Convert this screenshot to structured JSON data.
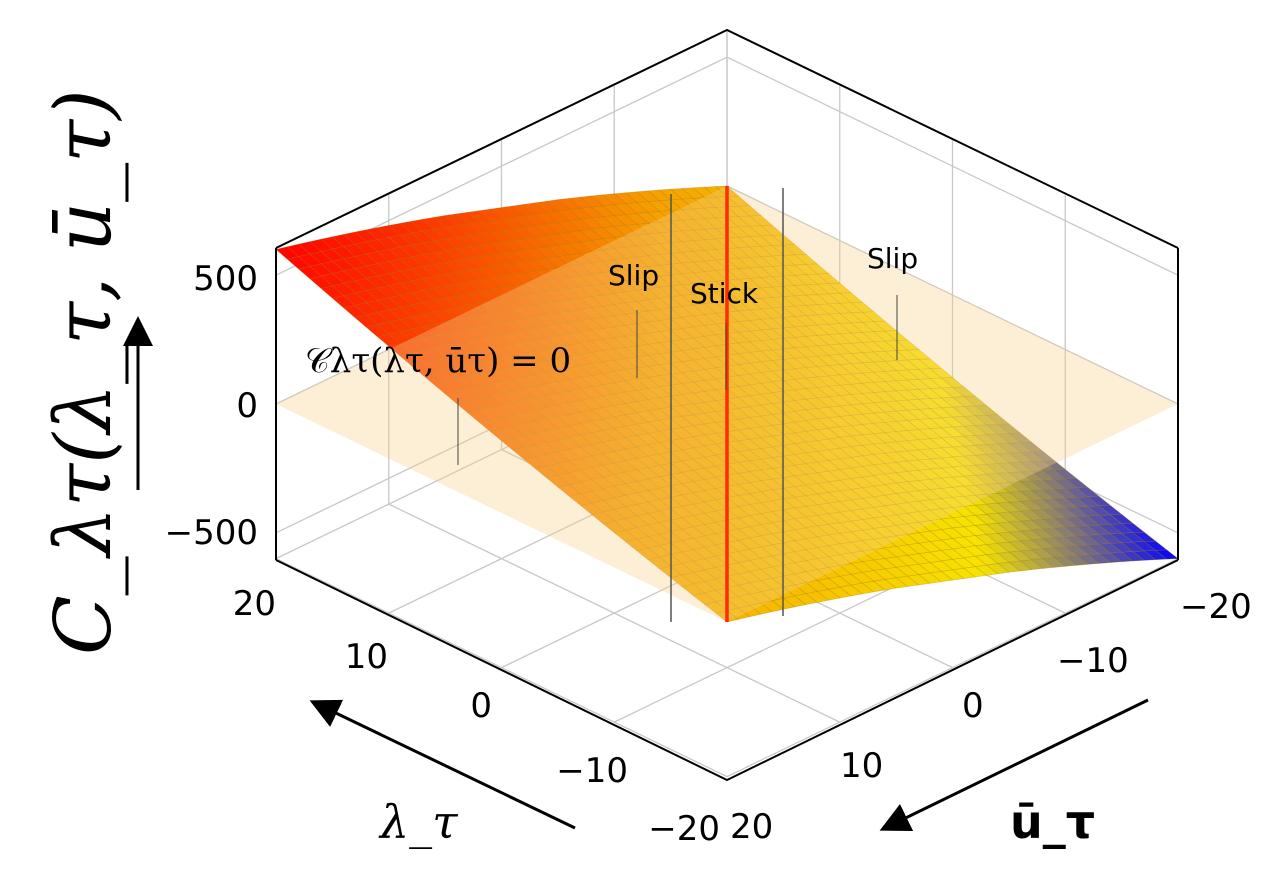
{
  "chart_data": {
    "type": "surface3d",
    "title": "",
    "x_axis": {
      "label": "λ_τ",
      "range": [
        -20,
        20
      ],
      "ticks": [
        20,
        10,
        0,
        -10,
        -20
      ],
      "tick_labels": [
        "20",
        "10",
        "0",
        "−10",
        "−20"
      ]
    },
    "y_axis": {
      "label": "ū_τ",
      "range": [
        -20,
        20
      ],
      "ticks": [
        -20,
        -10,
        0,
        10,
        20
      ],
      "tick_labels": [
        "−20",
        "−10",
        "0",
        "10",
        "20"
      ]
    },
    "z_axis": {
      "label": "C_λτ(λ_τ, ū_τ)",
      "range": [
        -600,
        600
      ],
      "ticks": [
        500,
        0,
        -500
      ],
      "tick_labels": [
        "500",
        "0",
        "−500"
      ]
    },
    "grid": true,
    "colormap": [
      "#ff0000",
      "#f5a000",
      "#f6e400",
      "#0000ff"
    ],
    "zero_plane_color": "#f5d28a",
    "zero_contour_color": "#ff2a00",
    "corners": [
      {
        "lambda": 20,
        "u": 20,
        "z": 600
      },
      {
        "lambda": -20,
        "u": -20,
        "z": -600
      },
      {
        "lambda": -20,
        "u": 20,
        "z": -120
      },
      {
        "lambda": 20,
        "u": -20,
        "z": 160
      }
    ],
    "annotations": [
      "Slip",
      "Stick",
      "Slip"
    ],
    "equation": "𝒞λτ(λτ, ūτ) = 0"
  }
}
